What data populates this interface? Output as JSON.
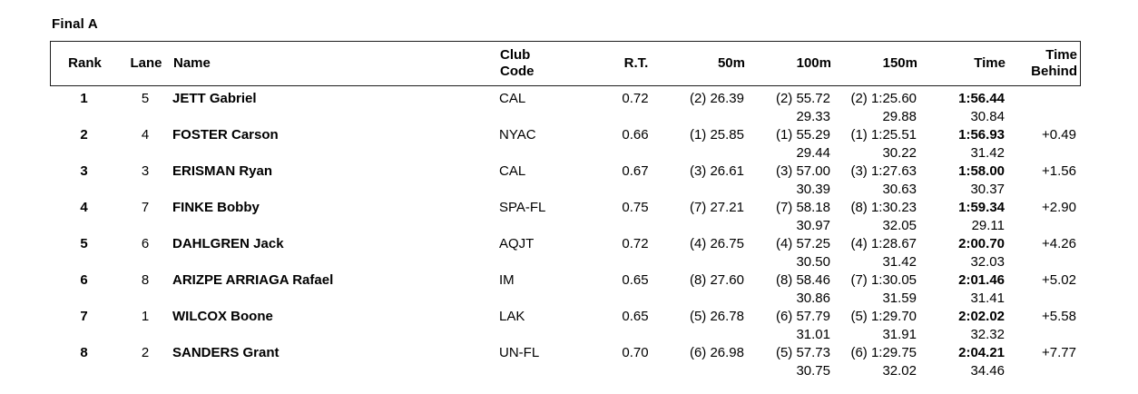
{
  "page": {
    "title": "Final A"
  },
  "table": {
    "headers": {
      "rank": "Rank",
      "lane": "Lane",
      "name": "Name",
      "club_line1": "Club",
      "club_line2": "Code",
      "rt": "R.T.",
      "m50": "50m",
      "m100": "100m",
      "m150": "150m",
      "time": "Time",
      "behind_line1": "Time",
      "behind_line2": "Behind"
    },
    "rows": [
      {
        "rank": "1",
        "lane": "5",
        "name": "JETT Gabriel",
        "club": "CAL",
        "rt": "0.72",
        "m50": "(2) 26.39",
        "m100": "(2) 55.72",
        "m100_split": "29.33",
        "m150": "(2) 1:25.60",
        "m150_split": "29.88",
        "time": "1:56.44",
        "time_split": "30.84",
        "behind": ""
      },
      {
        "rank": "2",
        "lane": "4",
        "name": "FOSTER Carson",
        "club": "NYAC",
        "rt": "0.66",
        "m50": "(1) 25.85",
        "m100": "(1) 55.29",
        "m100_split": "29.44",
        "m150": "(1) 1:25.51",
        "m150_split": "30.22",
        "time": "1:56.93",
        "time_split": "31.42",
        "behind": "+0.49"
      },
      {
        "rank": "3",
        "lane": "3",
        "name": "ERISMAN Ryan",
        "club": "CAL",
        "rt": "0.67",
        "m50": "(3) 26.61",
        "m100": "(3) 57.00",
        "m100_split": "30.39",
        "m150": "(3) 1:27.63",
        "m150_split": "30.63",
        "time": "1:58.00",
        "time_split": "30.37",
        "behind": "+1.56"
      },
      {
        "rank": "4",
        "lane": "7",
        "name": "FINKE Bobby",
        "club": "SPA-FL",
        "rt": "0.75",
        "m50": "(7) 27.21",
        "m100": "(7) 58.18",
        "m100_split": "30.97",
        "m150": "(8) 1:30.23",
        "m150_split": "32.05",
        "time": "1:59.34",
        "time_split": "29.11",
        "behind": "+2.90"
      },
      {
        "rank": "5",
        "lane": "6",
        "name": "DAHLGREN Jack",
        "club": "AQJT",
        "rt": "0.72",
        "m50": "(4) 26.75",
        "m100": "(4) 57.25",
        "m100_split": "30.50",
        "m150": "(4) 1:28.67",
        "m150_split": "31.42",
        "time": "2:00.70",
        "time_split": "32.03",
        "behind": "+4.26"
      },
      {
        "rank": "6",
        "lane": "8",
        "name": "ARIZPE ARRIAGA Rafael",
        "club": "IM",
        "rt": "0.65",
        "m50": "(8) 27.60",
        "m100": "(8) 58.46",
        "m100_split": "30.86",
        "m150": "(7) 1:30.05",
        "m150_split": "31.59",
        "time": "2:01.46",
        "time_split": "31.41",
        "behind": "+5.02"
      },
      {
        "rank": "7",
        "lane": "1",
        "name": "WILCOX Boone",
        "club": "LAK",
        "rt": "0.65",
        "m50": "(5) 26.78",
        "m100": "(6) 57.79",
        "m100_split": "31.01",
        "m150": "(5) 1:29.70",
        "m150_split": "31.91",
        "time": "2:02.02",
        "time_split": "32.32",
        "behind": "+5.58"
      },
      {
        "rank": "8",
        "lane": "2",
        "name": "SANDERS Grant",
        "club": "UN-FL",
        "rt": "0.70",
        "m50": "(6) 26.98",
        "m100": "(5) 57.73",
        "m100_split": "30.75",
        "m150": "(6) 1:29.75",
        "m150_split": "32.02",
        "time": "2:04.21",
        "time_split": "34.46",
        "behind": "+7.77"
      }
    ]
  }
}
